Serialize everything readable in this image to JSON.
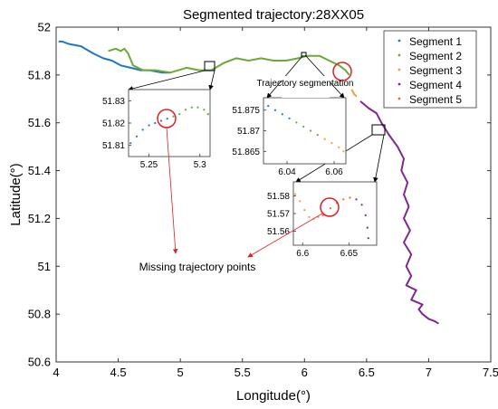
{
  "chart_data": {
    "type": "line",
    "title": "Segmented trajectory:28XX05",
    "xlabel": "Longitude(°)",
    "ylabel": "Latitude(°)",
    "xlim": [
      4,
      7.5
    ],
    "ylim": [
      50.6,
      52
    ],
    "xticks": [
      4,
      4.5,
      5,
      5.5,
      6,
      6.5,
      7,
      7.5
    ],
    "yticks": [
      50.6,
      50.8,
      51,
      51.2,
      51.4,
      51.6,
      51.8,
      52
    ],
    "grid": false,
    "legend_position": "top-right",
    "series": [
      {
        "name": "Segment 1",
        "color": "#1f77c4",
        "x": [
          4.02,
          4.05,
          4.1,
          4.2,
          4.3,
          4.38,
          4.45,
          4.52,
          4.6,
          4.68,
          4.75,
          4.85,
          4.92
        ],
        "y": [
          51.94,
          51.94,
          51.93,
          51.92,
          51.89,
          51.87,
          51.86,
          51.84,
          51.83,
          51.82,
          51.82,
          51.81,
          51.81
        ]
      },
      {
        "name": "Segment 2",
        "color": "#6aaa36",
        "x": [
          4.42,
          4.48,
          4.52,
          4.55,
          4.58,
          4.62,
          4.7,
          4.8,
          4.92,
          5.05,
          5.15,
          5.25,
          5.35,
          5.45,
          5.55,
          5.65,
          5.75,
          5.85,
          5.95,
          6.02,
          6.05,
          6.12,
          6.2,
          6.28,
          6.33,
          6.36
        ],
        "y": [
          51.9,
          51.91,
          51.9,
          51.91,
          51.89,
          51.84,
          51.82,
          51.82,
          51.81,
          51.83,
          51.82,
          51.82,
          51.85,
          51.87,
          51.86,
          51.87,
          51.86,
          51.86,
          51.87,
          51.88,
          51.88,
          51.88,
          51.86,
          51.84,
          51.82,
          51.8
        ]
      },
      {
        "name": "Segment 3",
        "color": "#e8a33a",
        "x": [
          6.38,
          6.4,
          6.42
        ],
        "y": [
          51.74,
          51.72,
          51.71
        ]
      },
      {
        "name": "Segment 4",
        "color": "#7d2a8e",
        "x": [
          6.45,
          6.52,
          6.58,
          6.62,
          6.68,
          6.75,
          6.8,
          6.78,
          6.83,
          6.8,
          6.84,
          6.8,
          6.85,
          6.8,
          6.86,
          6.82,
          6.86,
          6.82,
          6.9,
          6.86,
          6.95,
          6.92,
          6.95,
          7.0,
          7.05,
          7.08
        ],
        "y": [
          51.69,
          51.66,
          51.64,
          51.6,
          51.55,
          51.5,
          51.45,
          51.4,
          51.35,
          51.3,
          51.25,
          51.2,
          51.15,
          51.1,
          51.05,
          51.0,
          50.96,
          50.92,
          50.9,
          50.86,
          50.84,
          50.82,
          50.8,
          50.78,
          50.77,
          50.76
        ]
      },
      {
        "name": "Segment 5",
        "color": "#d9741f",
        "x": [],
        "y": []
      }
    ],
    "insets": [
      {
        "xlim": [
          5.23,
          5.31
        ],
        "ylim": [
          51.805,
          51.835
        ],
        "xticks": [
          5.25,
          5.3
        ],
        "yticks": [
          51.81,
          51.82,
          51.83
        ]
      },
      {
        "xlim": [
          6.03,
          6.065
        ],
        "ylim": [
          51.862,
          51.878
        ],
        "xticks": [
          6.04,
          6.06
        ],
        "yticks": [
          51.865,
          51.87,
          51.875
        ]
      },
      {
        "xlim": [
          6.59,
          6.68
        ],
        "ylim": [
          51.552,
          51.588
        ],
        "xticks": [
          6.6,
          6.65
        ],
        "yticks": [
          51.56,
          51.57,
          51.58
        ]
      }
    ],
    "annotations": [
      "Trajectory segmentation",
      "Missing trajectory points"
    ]
  }
}
